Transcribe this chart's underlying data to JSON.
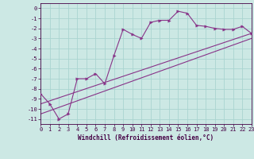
{
  "background_color": "#cce8e4",
  "grid_color": "#aad4d0",
  "line_color": "#883388",
  "xlabel": "Windchill (Refroidissement éolien,°C)",
  "xlim": [
    0,
    23
  ],
  "ylim": [
    -11.5,
    0.5
  ],
  "xticks": [
    0,
    1,
    2,
    3,
    4,
    5,
    6,
    7,
    8,
    9,
    10,
    11,
    12,
    13,
    14,
    15,
    16,
    17,
    18,
    19,
    20,
    21,
    22,
    23
  ],
  "yticks": [
    0,
    -1,
    -2,
    -3,
    -4,
    -5,
    -6,
    -7,
    -8,
    -9,
    -10,
    -11
  ],
  "scatter_x": [
    0,
    1,
    2,
    3,
    4,
    5,
    6,
    7,
    8,
    9,
    10,
    11,
    12,
    13,
    14,
    15,
    16,
    17,
    18,
    19,
    20,
    21,
    22,
    23
  ],
  "scatter_y": [
    -8.5,
    -9.5,
    -11.0,
    -10.5,
    -7.0,
    -7.0,
    -6.5,
    -7.5,
    -4.7,
    -2.1,
    -2.6,
    -3.0,
    -1.4,
    -1.2,
    -1.2,
    -0.3,
    -0.5,
    -1.7,
    -1.8,
    -2.0,
    -2.1,
    -2.1,
    -1.8,
    -2.5
  ],
  "line1_x": [
    0,
    23
  ],
  "line1_y": [
    -9.5,
    -2.5
  ],
  "line2_x": [
    0,
    23
  ],
  "line2_y": [
    -10.5,
    -3.0
  ],
  "xlabel_fontsize": 5.5,
  "tick_fontsize": 5.0,
  "marker_size": 2.5,
  "line_width": 0.8
}
